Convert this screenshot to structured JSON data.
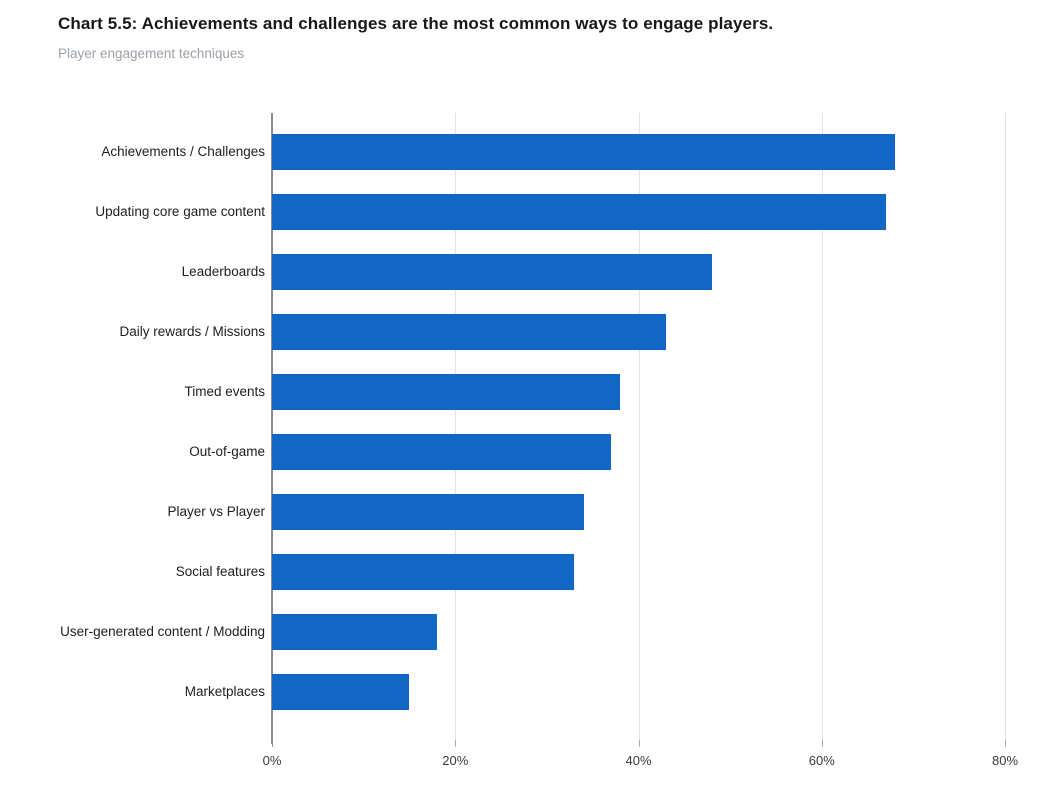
{
  "header": {
    "title": "Chart 5.5: Achievements and challenges are the most common ways to engage players.",
    "subtitle": "Player engagement techniques"
  },
  "chart_data": {
    "type": "bar",
    "orientation": "horizontal",
    "title": "Chart 5.5: Achievements and challenges are the most common ways to engage players.",
    "subtitle": "Player engagement techniques",
    "categories": [
      "Achievements / Challenges",
      "Updating core game content",
      "Leaderboards",
      "Daily rewards / Missions",
      "Timed events",
      "Out-of-game",
      "Player vs Player",
      "Social features",
      "User-generated content / Modding",
      "Marketplaces"
    ],
    "values": [
      68,
      67,
      48,
      43,
      38,
      37,
      34,
      33,
      18,
      15
    ],
    "unit": "%",
    "xlabel": "",
    "ylabel": "",
    "xlim": [
      0,
      80
    ],
    "x_tick_values": [
      0,
      20,
      40,
      60,
      80
    ],
    "x_tick_labels": [
      "0%",
      "20%",
      "40%",
      "60%",
      "80%"
    ],
    "grid": "vertical-gridlines-on",
    "legend": "none",
    "bar_color": "#1266c4",
    "axis_color": "#8a8a8a",
    "gridline_color": "#e3e3e3",
    "title_color": "#17181a",
    "subtitle_color": "#9aa0a6"
  }
}
